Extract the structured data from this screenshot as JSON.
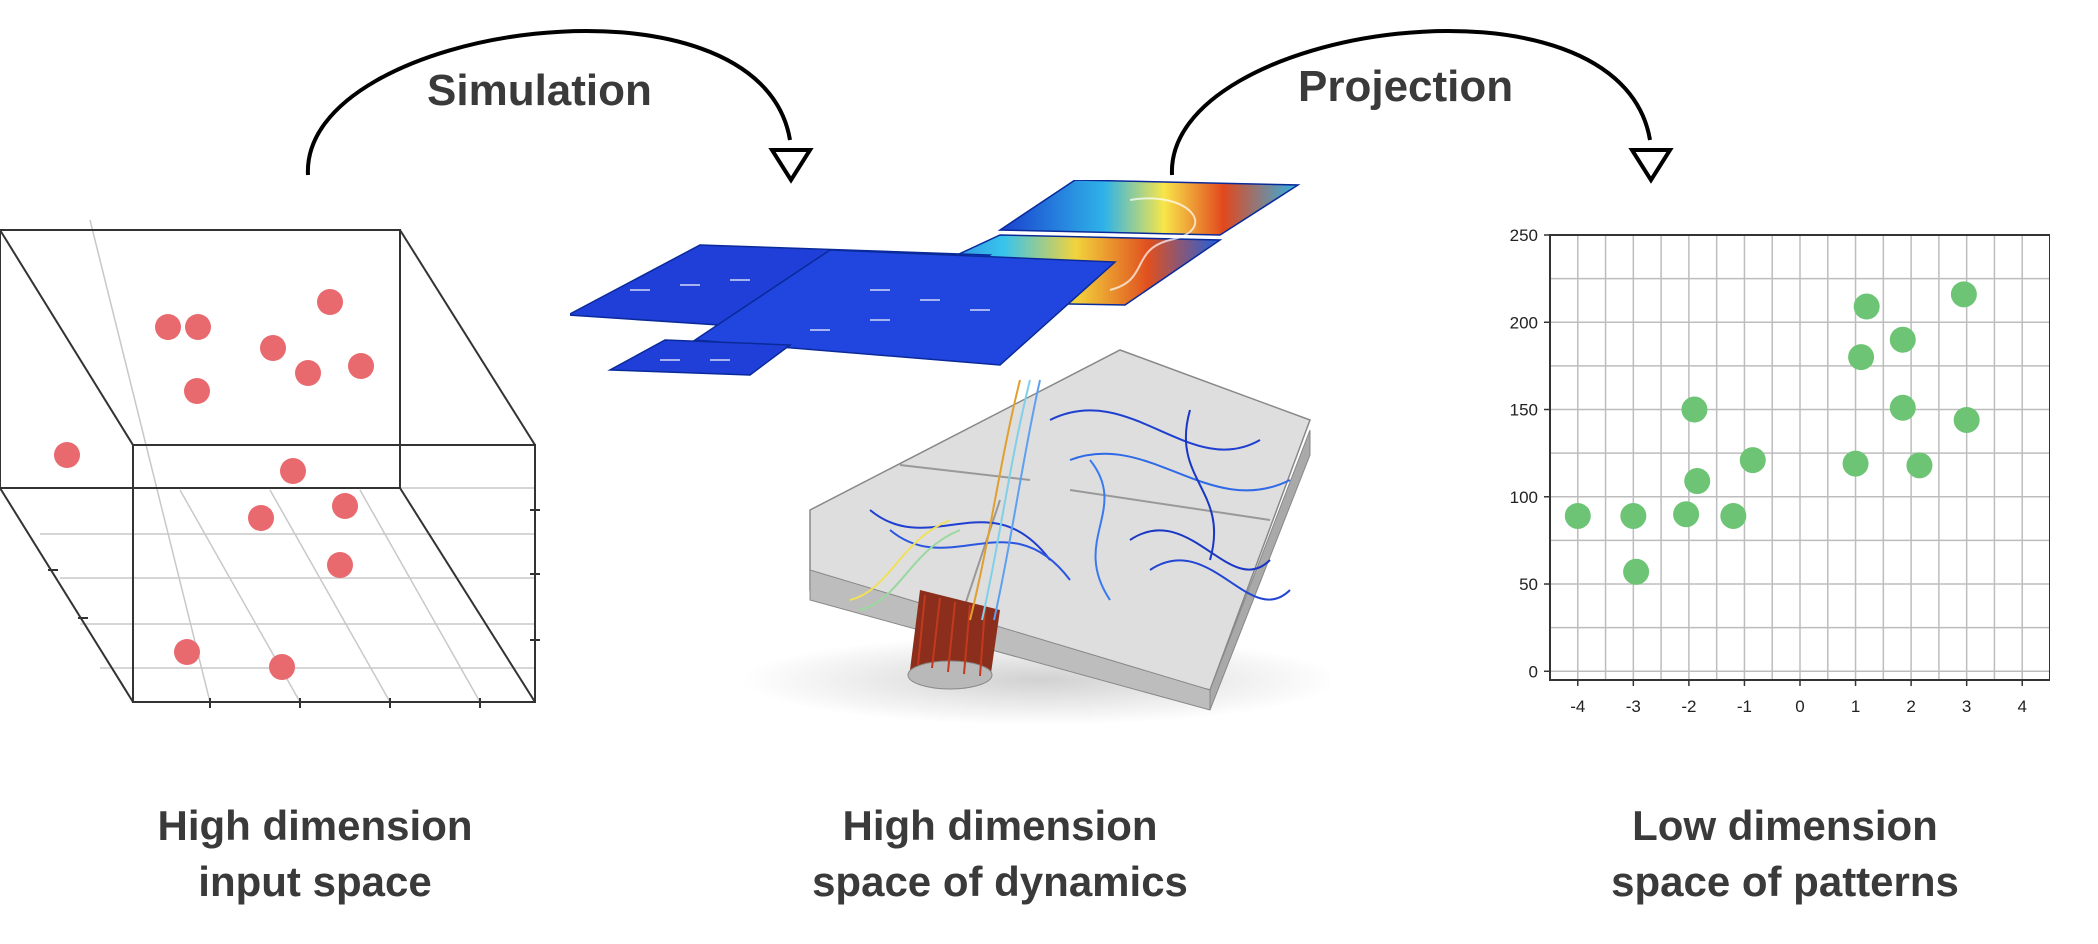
{
  "arrows": {
    "simulation_label": "Simulation",
    "projection_label": "Projection"
  },
  "captions": {
    "input_space": {
      "line1": "High dimension",
      "line2": "input space"
    },
    "dynamics_space": {
      "line1": "High dimension",
      "line2": "space of dynamics"
    },
    "pattern_space": {
      "line1": "Low dimension",
      "line2": "space of patterns"
    }
  },
  "colors": {
    "input_points": "#e8696e",
    "pattern_points": "#6cc474",
    "text": "#3a3a3a",
    "axis": "#333333",
    "grid": "#bdbdbd"
  },
  "chart_data": {
    "type": "scatter",
    "title": "",
    "xlabel": "",
    "ylabel": "",
    "xlim": [
      -4.5,
      4.5
    ],
    "ylim": [
      -5,
      250
    ],
    "xticks": [
      -4,
      -3,
      -2,
      -1,
      0,
      1,
      2,
      3,
      4
    ],
    "yticks": [
      0,
      50,
      100,
      150,
      200,
      250
    ],
    "grid": true,
    "points": [
      {
        "x": -4.0,
        "y": 89
      },
      {
        "x": -3.0,
        "y": 89
      },
      {
        "x": -2.95,
        "y": 57
      },
      {
        "x": -2.05,
        "y": 90
      },
      {
        "x": -1.9,
        "y": 150
      },
      {
        "x": -1.85,
        "y": 109
      },
      {
        "x": -1.2,
        "y": 89
      },
      {
        "x": -0.85,
        "y": 121
      },
      {
        "x": 1.0,
        "y": 119
      },
      {
        "x": 1.1,
        "y": 180
      },
      {
        "x": 1.2,
        "y": 209
      },
      {
        "x": 1.85,
        "y": 151
      },
      {
        "x": 1.85,
        "y": 190
      },
      {
        "x": 2.15,
        "y": 118
      },
      {
        "x": 2.95,
        "y": 216
      },
      {
        "x": 3.0,
        "y": 144
      }
    ]
  }
}
